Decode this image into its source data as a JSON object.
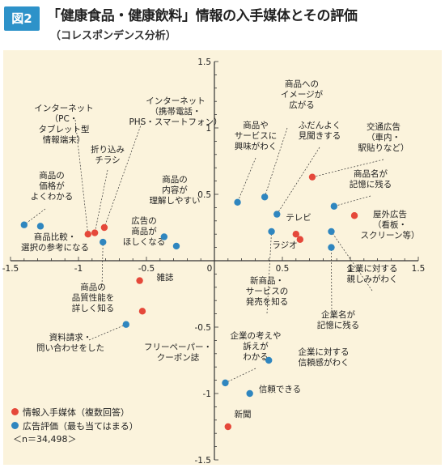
{
  "header": {
    "badge": "図2",
    "title": "「健康食品・健康飲料」情報の入手媒体とその評価",
    "subtitle": "（コレスポンデンス分析）"
  },
  "legend": {
    "media_label": "情報入手媒体（複数回答）",
    "eval_label": "広告評価（最も当てはまる）",
    "n_label": "＜n＝34,498＞"
  },
  "colors": {
    "media": "#e5483a",
    "eval": "#2f86bf",
    "panel": "#fbf3dc",
    "badge": "#2d92c9"
  },
  "chart_data": {
    "type": "scatter",
    "xlim": [
      -1.5,
      1.5
    ],
    "ylim": [
      -1.5,
      1.5
    ],
    "x_ticks": [
      "-1.5",
      "-1",
      "-0.5",
      "0",
      "0.5",
      "1",
      "1.5"
    ],
    "y_ticks": [
      "1.5",
      "1",
      "0.5",
      "-0.5",
      "-1",
      "-1.5"
    ],
    "grid": false,
    "series": [
      {
        "name": "情報入手媒体（複数回答）",
        "points": [
          {
            "label": "インターネット（PC・タブレット型情報端末）",
            "x": -0.93,
            "y": 0.2
          },
          {
            "label": "インターネット（携帯電話・PHS・スマートフォン）",
            "x": -0.81,
            "y": 0.25
          },
          {
            "label": "折り込みチラシ",
            "x": -0.88,
            "y": 0.21
          },
          {
            "label": "雑誌",
            "x": -0.55,
            "y": -0.15
          },
          {
            "label": "フリーペーパー・クーポン誌",
            "x": -0.53,
            "y": -0.38
          },
          {
            "label": "交通広告（車内・駅貼りなど）",
            "x": 0.72,
            "y": 0.63
          },
          {
            "label": "屋外広告（看板・スクリーン等）",
            "x": 1.03,
            "y": 0.34
          },
          {
            "label": "テレビ",
            "x": 0.6,
            "y": 0.2
          },
          {
            "label": "ラジオ",
            "x": 0.63,
            "y": 0.16
          },
          {
            "label": "新聞",
            "x": 0.1,
            "y": -1.25
          }
        ]
      },
      {
        "name": "広告評価（最も当てはまる）",
        "points": [
          {
            "label": "商品の価格がよくわかる",
            "x": -1.4,
            "y": 0.27
          },
          {
            "label": "商品比較・選択の参考になる",
            "x": -1.28,
            "y": 0.26
          },
          {
            "label": "商品の品質性能を詳しく知る",
            "x": -0.82,
            "y": 0.14
          },
          {
            "label": "商品の内容が理解しやすい",
            "x": -0.37,
            "y": 0.18
          },
          {
            "label": "広告の商品がほしくなる",
            "x": -0.28,
            "y": 0.11
          },
          {
            "label": "資料請求・問い合わせをした",
            "x": -0.65,
            "y": -0.48
          },
          {
            "label": "商品やサービスに興味がわく",
            "x": 0.17,
            "y": 0.44
          },
          {
            "label": "商品へのイメージが広がる",
            "x": 0.37,
            "y": 0.48
          },
          {
            "label": "ふだんよく見聞きする",
            "x": 0.46,
            "y": 0.35
          },
          {
            "label": "新商品・サービスの発売を知る",
            "x": 0.42,
            "y": 0.22
          },
          {
            "label": "商品名が記憶に残る",
            "x": 0.88,
            "y": 0.41
          },
          {
            "label": "企業に対する親しみがわく",
            "x": 0.86,
            "y": 0.22
          },
          {
            "label": "企業名が記憶に残る",
            "x": 0.86,
            "y": 0.1
          },
          {
            "label": "企業の考えや訴えがわかる",
            "x": 0.08,
            "y": -0.92
          },
          {
            "label": "企業に対する信頼感がわく",
            "x": 0.4,
            "y": -0.75
          },
          {
            "label": "信頼できる",
            "x": 0.26,
            "y": -1.0
          }
        ]
      }
    ],
    "annotations": [
      {
        "lines": [
          "インターネット",
          "（PC・",
          "タブレット型",
          "情報端末）"
        ],
        "point": [
          -0.93,
          0.2
        ]
      },
      {
        "lines": [
          "インターネット",
          "（携帯電話・",
          "PHS・スマートフォン）"
        ],
        "point": [
          -0.81,
          0.25
        ]
      },
      {
        "lines": [
          "折り込み",
          "チラシ"
        ],
        "point": [
          -0.88,
          0.21
        ]
      },
      {
        "lines": [
          "商品の",
          "価格が",
          "よくわかる"
        ],
        "point": [
          -1.4,
          0.27
        ]
      },
      {
        "lines": [
          "商品比較・",
          "選択の参考になる"
        ],
        "point": [
          -1.28,
          0.26
        ]
      },
      {
        "lines": [
          "商品の",
          "内容が",
          "理解しやすい"
        ],
        "point": [
          -0.37,
          0.18
        ]
      },
      {
        "lines": [
          "広告の",
          "商品が",
          "ほしくなる"
        ],
        "point": [
          -0.28,
          0.11
        ]
      },
      {
        "lines": [
          "雑誌"
        ],
        "point": [
          -0.55,
          -0.15
        ]
      },
      {
        "lines": [
          "商品の",
          "品質性能を",
          "詳しく知る"
        ],
        "point": [
          -0.82,
          0.14
        ]
      },
      {
        "lines": [
          "資料請求・",
          "問い合わせをした"
        ],
        "point": [
          -0.65,
          -0.48
        ]
      },
      {
        "lines": [
          "フリーペーパー・",
          "クーポン誌"
        ],
        "point": [
          -0.53,
          -0.38
        ]
      },
      {
        "lines": [
          "商品への",
          "イメージが",
          "広がる"
        ],
        "point": [
          0.37,
          0.48
        ]
      },
      {
        "lines": [
          "商品や",
          "サービスに",
          "興味がわく"
        ],
        "point": [
          0.17,
          0.44
        ]
      },
      {
        "lines": [
          "ふだんよく",
          "見聞きする"
        ],
        "point": [
          0.46,
          0.35
        ]
      },
      {
        "lines": [
          "交通広告",
          "（車内・",
          "駅貼りなど）"
        ],
        "point": [
          0.72,
          0.63
        ]
      },
      {
        "lines": [
          "商品名が",
          "記憶に残る"
        ],
        "point": [
          0.88,
          0.41
        ]
      },
      {
        "lines": [
          "テレビ"
        ],
        "point": [
          0.6,
          0.2
        ]
      },
      {
        "lines": [
          "屋外広告",
          "（看板・",
          "スクリーン等）"
        ],
        "point": [
          1.03,
          0.34
        ]
      },
      {
        "lines": [
          "ラジオ"
        ],
        "point": [
          0.63,
          0.16
        ]
      },
      {
        "lines": [
          "新商品・",
          "サービスの",
          "発売を知る"
        ],
        "point": [
          0.42,
          0.22
        ]
      },
      {
        "lines": [
          "企業に対する",
          "親しみがわく"
        ],
        "point": [
          0.86,
          0.22
        ]
      },
      {
        "lines": [
          "企業名が",
          "記憶に残る"
        ],
        "point": [
          0.86,
          0.1
        ]
      },
      {
        "lines": [
          "企業の考えや",
          "訴えが",
          "わかる"
        ],
        "point": [
          0.08,
          -0.92
        ]
      },
      {
        "lines": [
          "企業に対する",
          "信頼感がわく"
        ],
        "point": [
          0.4,
          -0.75
        ]
      },
      {
        "lines": [
          "信頼できる"
        ],
        "point": [
          0.26,
          -1.0
        ]
      },
      {
        "lines": [
          "新聞"
        ],
        "point": [
          0.1,
          -1.25
        ]
      }
    ]
  }
}
